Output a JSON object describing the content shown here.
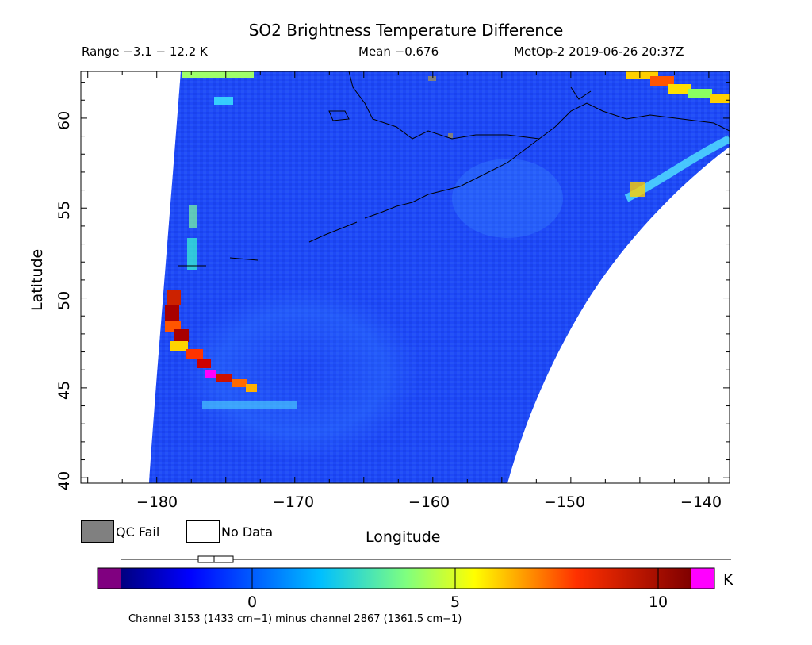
{
  "header": {
    "title": "SO2 Brightness Temperature Difference",
    "range_text": "Range −3.1 − 12.2 K",
    "mean_text": "Mean −0.676",
    "platform_text": "MetOp-2 2019-06-26 20:37Z"
  },
  "axes": {
    "xlabel": "Longitude",
    "ylabel": "Latitude",
    "xticks": [
      "−180",
      "−170",
      "−160",
      "−150",
      "−140"
    ],
    "yticks": [
      "40",
      "45",
      "50",
      "55",
      "60"
    ],
    "xlim": [
      -185.5,
      -138.5
    ],
    "ylim": [
      39.7,
      62.6
    ]
  },
  "legend": {
    "qc_fail_label": "QC Fail",
    "no_data_label": "No Data",
    "qc_fail_color": "#808080",
    "no_data_color": "#ffffff"
  },
  "colorbar": {
    "unit": "K",
    "ticks": [
      "0",
      "5",
      "10"
    ],
    "range": [
      -3.1,
      12.2
    ],
    "under_color": "#800080",
    "over_color": "#ff00ff",
    "caption": "Channel 3153 (1433 cm−1) minus channel 2867 (1361.5 cm−1)"
  }
}
